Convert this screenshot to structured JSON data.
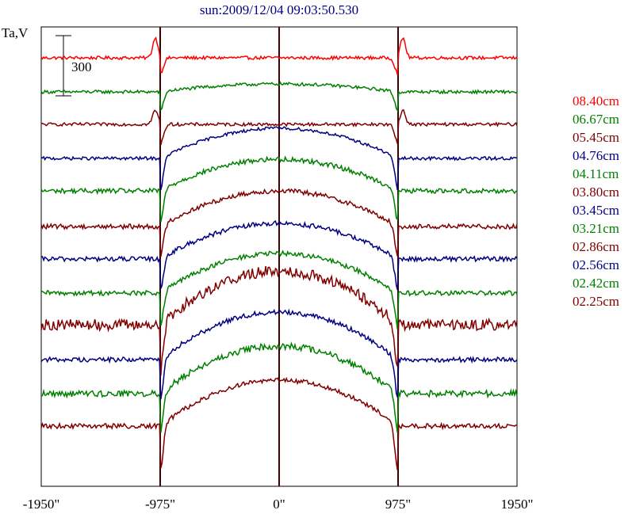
{
  "chart_data": {
    "type": "line",
    "title": "sun:2009/12/04 09:03:50.530",
    "ylabel": "Ta,V",
    "scale_bar_label": "300",
    "xlim": [
      -1950,
      1950
    ],
    "x_ticks": [
      {
        "value": -1950,
        "label": "-1950\""
      },
      {
        "value": -975,
        "label": "-975\""
      },
      {
        "value": 0,
        "label": "0\""
      },
      {
        "value": 975,
        "label": "975\""
      },
      {
        "value": 1950,
        "label": "1950\""
      }
    ],
    "vertical_lines": [
      -975,
      0,
      975
    ],
    "limb": 975,
    "series": [
      {
        "name": "08.40cm",
        "color": "#ff0000",
        "baseline": 0,
        "disk_rise": 0,
        "limb_dip": -20,
        "limb_peak": 25,
        "noise": 2
      },
      {
        "name": "06.67cm",
        "color": "#008000",
        "baseline": -43,
        "disk_rise": 10,
        "limb_dip": -25,
        "limb_peak": 0,
        "noise": 2
      },
      {
        "name": "05.45cm",
        "color": "#800000",
        "baseline": -84,
        "disk_rise": 0,
        "limb_dip": -25,
        "limb_peak": 18,
        "noise": 2
      },
      {
        "name": "04.76cm",
        "color": "#000080",
        "baseline": -127,
        "disk_rise": 38,
        "limb_dip": -40,
        "limb_peak": 0,
        "noise": 2
      },
      {
        "name": "04.11cm",
        "color": "#008000",
        "baseline": -168,
        "disk_rise": 40,
        "limb_dip": -40,
        "limb_peak": 0,
        "noise": 3
      },
      {
        "name": "03.80cm",
        "color": "#800000",
        "baseline": -213,
        "disk_rise": 45,
        "limb_dip": -40,
        "limb_peak": 0,
        "noise": 3
      },
      {
        "name": "03.45cm",
        "color": "#000080",
        "baseline": -254,
        "disk_rise": 45,
        "limb_dip": -40,
        "limb_peak": 0,
        "noise": 3
      },
      {
        "name": "03.21cm",
        "color": "#008000",
        "baseline": -297,
        "disk_rise": 50,
        "limb_dip": -45,
        "limb_peak": 0,
        "noise": 3
      },
      {
        "name": "02.86cm",
        "color": "#800000",
        "baseline": -337,
        "disk_rise": 68,
        "limb_dip": -60,
        "limb_peak": 0,
        "noise": 7
      },
      {
        "name": "02.56cm",
        "color": "#000080",
        "baseline": -381,
        "disk_rise": 60,
        "limb_dip": -50,
        "limb_peak": 0,
        "noise": 3
      },
      {
        "name": "02.42cm",
        "color": "#008000",
        "baseline": -424,
        "disk_rise": 60,
        "limb_dip": -50,
        "limb_peak": 0,
        "noise": 4
      },
      {
        "name": "02.25cm",
        "color": "#800000",
        "baseline": -465,
        "disk_rise": 58,
        "limb_dip": -55,
        "limb_peak": 0,
        "noise": 3
      }
    ],
    "grid": false,
    "legend": "right"
  }
}
